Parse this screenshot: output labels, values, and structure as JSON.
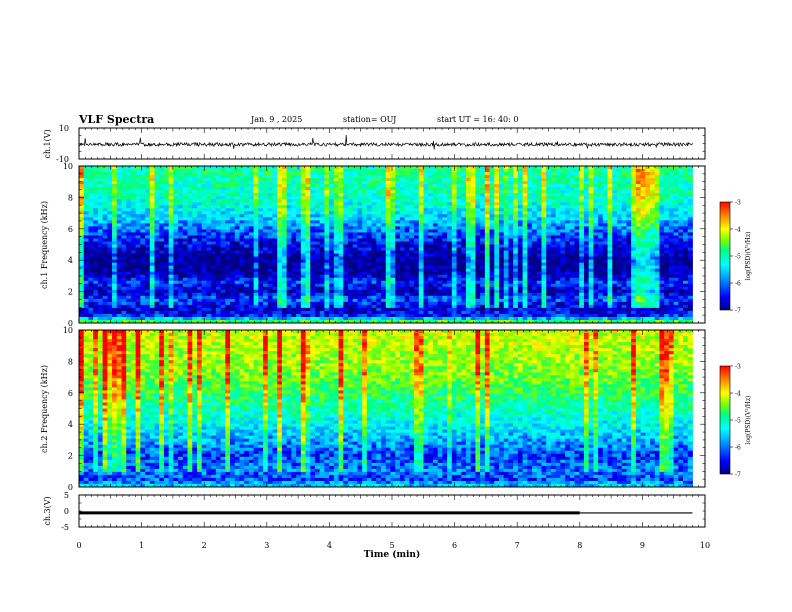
{
  "header": {
    "title": "VLF Spectra",
    "date": "Jan. 9 , 2025",
    "station": "station= OUJ",
    "start_ut": "start UT =  16: 40: 0"
  },
  "colors": {
    "spectrogram_palette": [
      "#000080",
      "#0000ff",
      "#00a0ff",
      "#00ffff",
      "#00ff80",
      "#80ff00",
      "#ffff00",
      "#ff8000",
      "#ff0000"
    ]
  },
  "chart_data": [
    {
      "type": "line",
      "panel": "ch1-waveform",
      "ylabel": "ch.1(V)",
      "ylim": [
        -10,
        10
      ],
      "yticks": [
        "10",
        "-10"
      ],
      "x": [
        0,
        9.8
      ],
      "series": [
        {
          "values": [
            -0.6,
            -0.6
          ]
        }
      ],
      "note_style": "noisy trace around constant level"
    },
    {
      "type": "heatmap",
      "panel": "ch1-spectrogram",
      "ylabel": "ch.1 Frequency (kHz)",
      "xlim": [
        0,
        10
      ],
      "ylim": [
        0,
        10
      ],
      "data_xlim": [
        0,
        9.8
      ],
      "yticks": [
        "0",
        "2",
        "4",
        "6",
        "8",
        "10"
      ],
      "colorbar": {
        "label": "log(PSD)(V²/Hz)",
        "ticks": [
          "-3",
          "-4",
          "-5",
          "-6",
          "-7"
        ],
        "range": [
          -7,
          -3
        ]
      },
      "frequency_profile_log_psd": [
        {
          "f": 0.0,
          "v": -4.3
        },
        {
          "f": 0.4,
          "v": -6.4
        },
        {
          "f": 1.0,
          "v": -6.7
        },
        {
          "f": 1.5,
          "v": -6.2
        },
        {
          "f": 2.0,
          "v": -6.8
        },
        {
          "f": 2.6,
          "v": -6.4
        },
        {
          "f": 3.2,
          "v": -6.9
        },
        {
          "f": 4.0,
          "v": -7.0
        },
        {
          "f": 5.0,
          "v": -6.6
        },
        {
          "f": 6.0,
          "v": -6.1
        },
        {
          "f": 7.0,
          "v": -5.6
        },
        {
          "f": 8.0,
          "v": -5.3
        },
        {
          "f": 10.0,
          "v": -5.1
        }
      ]
    },
    {
      "type": "heatmap",
      "panel": "ch2-spectrogram",
      "ylabel": "ch.2 Frequency (kHz)",
      "xlim": [
        0,
        10
      ],
      "ylim": [
        0,
        10
      ],
      "data_xlim": [
        0,
        9.8
      ],
      "yticks": [
        "0",
        "2",
        "4",
        "6",
        "8",
        "10"
      ],
      "colorbar": {
        "label": "log(PSD)(V²/Hz)",
        "ticks": [
          "-3",
          "-4",
          "-5",
          "-6",
          "-7"
        ],
        "range": [
          -7,
          -3
        ]
      },
      "frequency_profile_log_psd": [
        {
          "f": 0.0,
          "v": -5.6
        },
        {
          "f": 0.5,
          "v": -6.3
        },
        {
          "f": 1.0,
          "v": -6.1
        },
        {
          "f": 2.0,
          "v": -6.3
        },
        {
          "f": 2.8,
          "v": -6.0
        },
        {
          "f": 4.0,
          "v": -5.5
        },
        {
          "f": 5.0,
          "v": -5.2
        },
        {
          "f": 6.0,
          "v": -4.9
        },
        {
          "f": 7.0,
          "v": -4.6
        },
        {
          "f": 8.0,
          "v": -4.4
        },
        {
          "f": 10.0,
          "v": -4.2
        }
      ]
    },
    {
      "type": "line",
      "panel": "ch3-waveform",
      "ylabel": "ch.3(V)",
      "ylim": [
        -5,
        5
      ],
      "yticks": [
        "5",
        "0",
        "-5"
      ],
      "xlabel": "Time (min)",
      "xlim": [
        0,
        10
      ],
      "xticks": [
        "0",
        "1",
        "2",
        "3",
        "4",
        "5",
        "6",
        "7",
        "8",
        "9",
        "10"
      ],
      "series": [
        {
          "x": [
            0,
            8.0
          ],
          "values": [
            -0.6,
            -0.6
          ],
          "style": "thick"
        },
        {
          "x": [
            8.0,
            9.8
          ],
          "values": [
            -0.6,
            -0.6
          ],
          "style": "thin"
        }
      ]
    }
  ]
}
